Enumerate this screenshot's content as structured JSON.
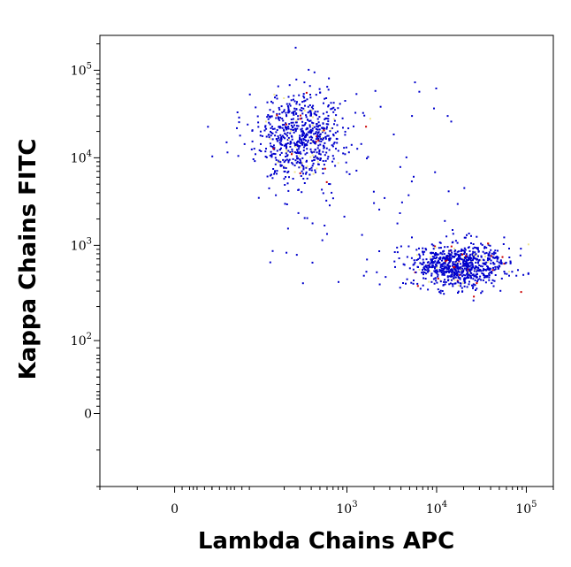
{
  "chart_data": {
    "type": "scatter",
    "title": "",
    "xlabel": "Lambda Chains APC",
    "ylabel": "Kappa Chains FITC",
    "x_scale": "biexponential",
    "y_scale": "biexponential",
    "xlim": [
      -100,
      200000
    ],
    "ylim": [
      -100,
      250000
    ],
    "x_ticks": [
      {
        "value": 0,
        "label": "0"
      },
      {
        "value": 1000,
        "base": "10",
        "exp": "3"
      },
      {
        "value": 10000,
        "base": "10",
        "exp": "4"
      },
      {
        "value": 100000,
        "base": "10",
        "exp": "5"
      }
    ],
    "y_ticks": [
      {
        "value": 0,
        "label": "0"
      },
      {
        "value": 100,
        "base": "10",
        "exp": "2"
      },
      {
        "value": 1000,
        "base": "10",
        "exp": "3"
      },
      {
        "value": 10000,
        "base": "10",
        "exp": "4"
      },
      {
        "value": 100000,
        "base": "10",
        "exp": "5"
      }
    ],
    "populations": [
      {
        "name": "",
        "color": "#0000cc",
        "center_x": 300,
        "center_y": 18000,
        "approx_events": 700
      },
      {
        "name": "",
        "color": "#0000cc",
        "center_x": 18000,
        "center_y": 600,
        "approx_events": 800
      }
    ],
    "density_colors": [
      "#0000cc",
      "#f0e68c",
      "#cc0000"
    ],
    "grid": false
  }
}
